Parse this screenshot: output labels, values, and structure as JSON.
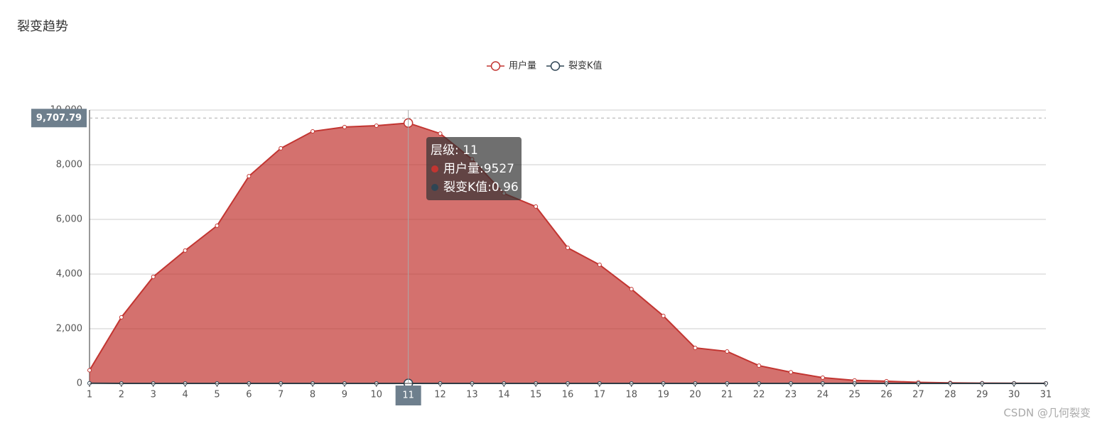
{
  "chart_data": {
    "type": "area-line",
    "title": "裂变趋势",
    "categories": [
      "1",
      "2",
      "3",
      "4",
      "5",
      "6",
      "7",
      "8",
      "9",
      "10",
      "11",
      "12",
      "13",
      "14",
      "15",
      "16",
      "17",
      "18",
      "19",
      "20",
      "21",
      "22",
      "23",
      "24",
      "25",
      "26",
      "27",
      "28",
      "29",
      "30",
      "31"
    ],
    "series": [
      {
        "name": "用户量",
        "color": "#c23531",
        "area": true,
        "values": [
          480,
          2420,
          3900,
          4860,
          5770,
          7580,
          8600,
          9220,
          9380,
          9430,
          9527,
          9140,
          8200,
          6950,
          6470,
          4960,
          4340,
          3450,
          2470,
          1300,
          1170,
          650,
          410,
          210,
          110,
          80,
          40,
          20,
          10,
          5,
          2
        ]
      },
      {
        "name": "裂变K值",
        "color": "#2f4554",
        "area": false,
        "values": [
          5.04,
          1.61,
          1.25,
          1.19,
          1.31,
          1.13,
          1.07,
          1.02,
          1.01,
          1.01,
          0.96,
          0.9,
          0.85,
          0.93,
          0.77,
          0.88,
          0.79,
          0.72,
          0.53,
          0.9,
          0.56,
          0.63,
          0.51,
          0.52,
          0.73,
          0.5,
          0.5,
          0.5,
          0.5,
          0.4,
          0
        ]
      }
    ],
    "ylim": [
      0,
      10000
    ],
    "yticks": [
      0,
      {
        "value": 2000,
        "label": "2,000"
      },
      {
        "value": 4000,
        "label": "4,000"
      },
      {
        "value": 6000,
        "label": "6,000"
      },
      {
        "value": 8000,
        "label": "8,000"
      },
      {
        "value": 10000,
        "label": "10,000"
      }
    ],
    "grid": true,
    "legend_position": "top",
    "axis_pointer": {
      "category_index": 10,
      "value": 9707.79,
      "label": "9,707.79"
    },
    "tooltip": {
      "title": "层级:  11",
      "lines": [
        "用户量:9527",
        "裂变K值:0.96"
      ]
    },
    "watermark": "CSDN @几何裂变"
  }
}
